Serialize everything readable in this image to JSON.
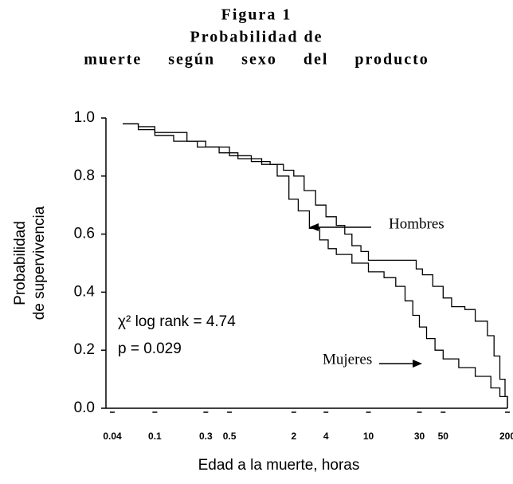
{
  "chart_data": {
    "type": "step",
    "title": [
      "Figura 1",
      "Probabilidad de",
      "muerte según sexo del producto"
    ],
    "ylabel": [
      "Probabilidad",
      "de supervivencia"
    ],
    "xlabel": "Edad a la muerte, horas",
    "xscale": "log",
    "xlim": [
      0.04,
      200
    ],
    "xticks": [
      0.04,
      0.1,
      0.3,
      0.5,
      2,
      4,
      10,
      30,
      50,
      200
    ],
    "ylim": [
      0,
      1
    ],
    "yticks": [
      {
        "value": 0,
        "label": "0.0"
      },
      0.2,
      0.4,
      0.6,
      0.8,
      {
        "value": 1,
        "label": "1.0"
      }
    ],
    "annotations": [
      "χ² log rank = 4.74",
      "p = 0.029"
    ],
    "series": [
      {
        "name": "Hombres",
        "color": "#000000",
        "x": [
          0.05,
          0.07,
          0.1,
          0.2,
          0.3,
          0.5,
          0.8,
          1.2,
          1.6,
          2,
          2.5,
          3.2,
          4,
          5,
          6,
          7,
          8.5,
          10,
          25,
          28,
          32,
          40,
          50,
          60,
          80,
          100,
          130,
          150,
          170,
          190,
          200
        ],
        "values": [
          0.98,
          0.97,
          0.95,
          0.92,
          0.9,
          0.87,
          0.85,
          0.84,
          0.82,
          0.8,
          0.75,
          0.7,
          0.66,
          0.63,
          0.6,
          0.56,
          0.54,
          0.51,
          0.51,
          0.48,
          0.46,
          0.42,
          0.38,
          0.35,
          0.34,
          0.3,
          0.25,
          0.18,
          0.1,
          0.04,
          0
        ]
      },
      {
        "name": "Mujeres",
        "color": "#000000",
        "x": [
          0.05,
          0.07,
          0.1,
          0.15,
          0.25,
          0.4,
          0.6,
          1,
          1.4,
          1.8,
          2.2,
          2.8,
          3.5,
          4.2,
          5,
          7,
          10,
          14,
          18,
          22,
          26,
          30,
          35,
          42,
          50,
          70,
          100,
          140,
          170,
          200
        ],
        "values": [
          0.98,
          0.96,
          0.94,
          0.92,
          0.9,
          0.88,
          0.86,
          0.84,
          0.8,
          0.72,
          0.68,
          0.62,
          0.58,
          0.55,
          0.53,
          0.5,
          0.47,
          0.45,
          0.42,
          0.37,
          0.32,
          0.28,
          0.24,
          0.2,
          0.17,
          0.14,
          0.11,
          0.07,
          0.04,
          0
        ]
      }
    ]
  }
}
